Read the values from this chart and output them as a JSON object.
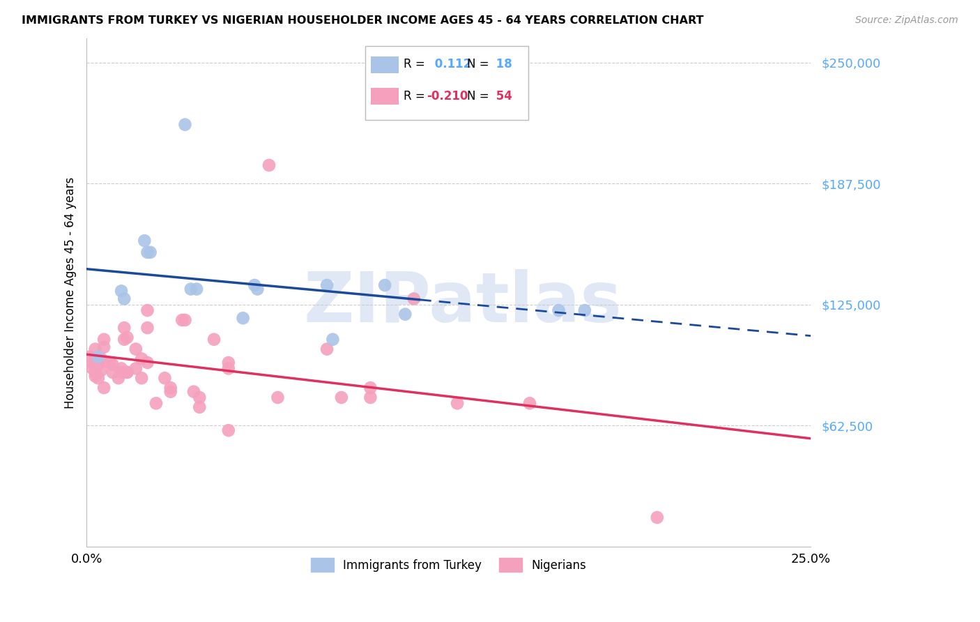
{
  "title": "IMMIGRANTS FROM TURKEY VS NIGERIAN HOUSEHOLDER INCOME AGES 45 - 64 YEARS CORRELATION CHART",
  "source": "Source: ZipAtlas.com",
  "ylabel": "Householder Income Ages 45 - 64 years",
  "xlim": [
    0.0,
    0.25
  ],
  "ylim": [
    0,
    262500
  ],
  "yticks": [
    62500,
    125000,
    187500,
    250000
  ],
  "ytick_labels": [
    "$62,500",
    "$125,000",
    "$187,500",
    "$250,000"
  ],
  "xtick_vals": [
    0.0,
    0.05,
    0.1,
    0.15,
    0.2,
    0.25
  ],
  "xtick_labels": [
    "0.0%",
    "",
    "",
    "",
    "",
    "25.0%"
  ],
  "background_color": "#ffffff",
  "watermark_text": "ZIPatlas",
  "legend_r_turkey": "0.112",
  "legend_n_turkey": "18",
  "legend_r_nigerian": "-0.210",
  "legend_n_nigerian": "54",
  "turkey_color": "#aac4e8",
  "nigerian_color": "#f5a0bc",
  "turkey_line_color": "#1a4a99",
  "nigerian_line_color": "#e03060",
  "turkey_scatter": [
    [
      0.004,
      98000
    ],
    [
      0.012,
      132000
    ],
    [
      0.013,
      128000
    ],
    [
      0.02,
      158000
    ],
    [
      0.021,
      152000
    ],
    [
      0.022,
      152000
    ],
    [
      0.034,
      218000
    ],
    [
      0.036,
      133000
    ],
    [
      0.038,
      133000
    ],
    [
      0.054,
      118000
    ],
    [
      0.058,
      135000
    ],
    [
      0.059,
      133000
    ],
    [
      0.083,
      135000
    ],
    [
      0.085,
      107000
    ],
    [
      0.103,
      135000
    ],
    [
      0.163,
      122000
    ],
    [
      0.172,
      122000
    ],
    [
      0.11,
      120000
    ]
  ],
  "nigerian_scatter": [
    [
      0.001,
      98000
    ],
    [
      0.002,
      92000
    ],
    [
      0.002,
      95000
    ],
    [
      0.003,
      90000
    ],
    [
      0.003,
      88000
    ],
    [
      0.003,
      102000
    ],
    [
      0.004,
      87000
    ],
    [
      0.004,
      94000
    ],
    [
      0.005,
      97000
    ],
    [
      0.005,
      91000
    ],
    [
      0.006,
      82000
    ],
    [
      0.006,
      107000
    ],
    [
      0.006,
      103000
    ],
    [
      0.008,
      95000
    ],
    [
      0.009,
      94000
    ],
    [
      0.009,
      90000
    ],
    [
      0.011,
      87000
    ],
    [
      0.012,
      90000
    ],
    [
      0.012,
      92000
    ],
    [
      0.013,
      107000
    ],
    [
      0.013,
      113000
    ],
    [
      0.014,
      108000
    ],
    [
      0.014,
      90000
    ],
    [
      0.014,
      90000
    ],
    [
      0.017,
      102000
    ],
    [
      0.017,
      92000
    ],
    [
      0.019,
      97000
    ],
    [
      0.019,
      87000
    ],
    [
      0.021,
      122000
    ],
    [
      0.021,
      113000
    ],
    [
      0.021,
      95000
    ],
    [
      0.024,
      74000
    ],
    [
      0.027,
      87000
    ],
    [
      0.029,
      82000
    ],
    [
      0.029,
      80000
    ],
    [
      0.033,
      117000
    ],
    [
      0.034,
      117000
    ],
    [
      0.037,
      80000
    ],
    [
      0.039,
      77000
    ],
    [
      0.039,
      72000
    ],
    [
      0.044,
      107000
    ],
    [
      0.049,
      95000
    ],
    [
      0.049,
      60000
    ],
    [
      0.049,
      92000
    ],
    [
      0.063,
      197000
    ],
    [
      0.066,
      77000
    ],
    [
      0.083,
      102000
    ],
    [
      0.088,
      77000
    ],
    [
      0.098,
      77000
    ],
    [
      0.098,
      82000
    ],
    [
      0.113,
      128000
    ],
    [
      0.128,
      74000
    ],
    [
      0.153,
      74000
    ],
    [
      0.197,
      15000
    ]
  ]
}
